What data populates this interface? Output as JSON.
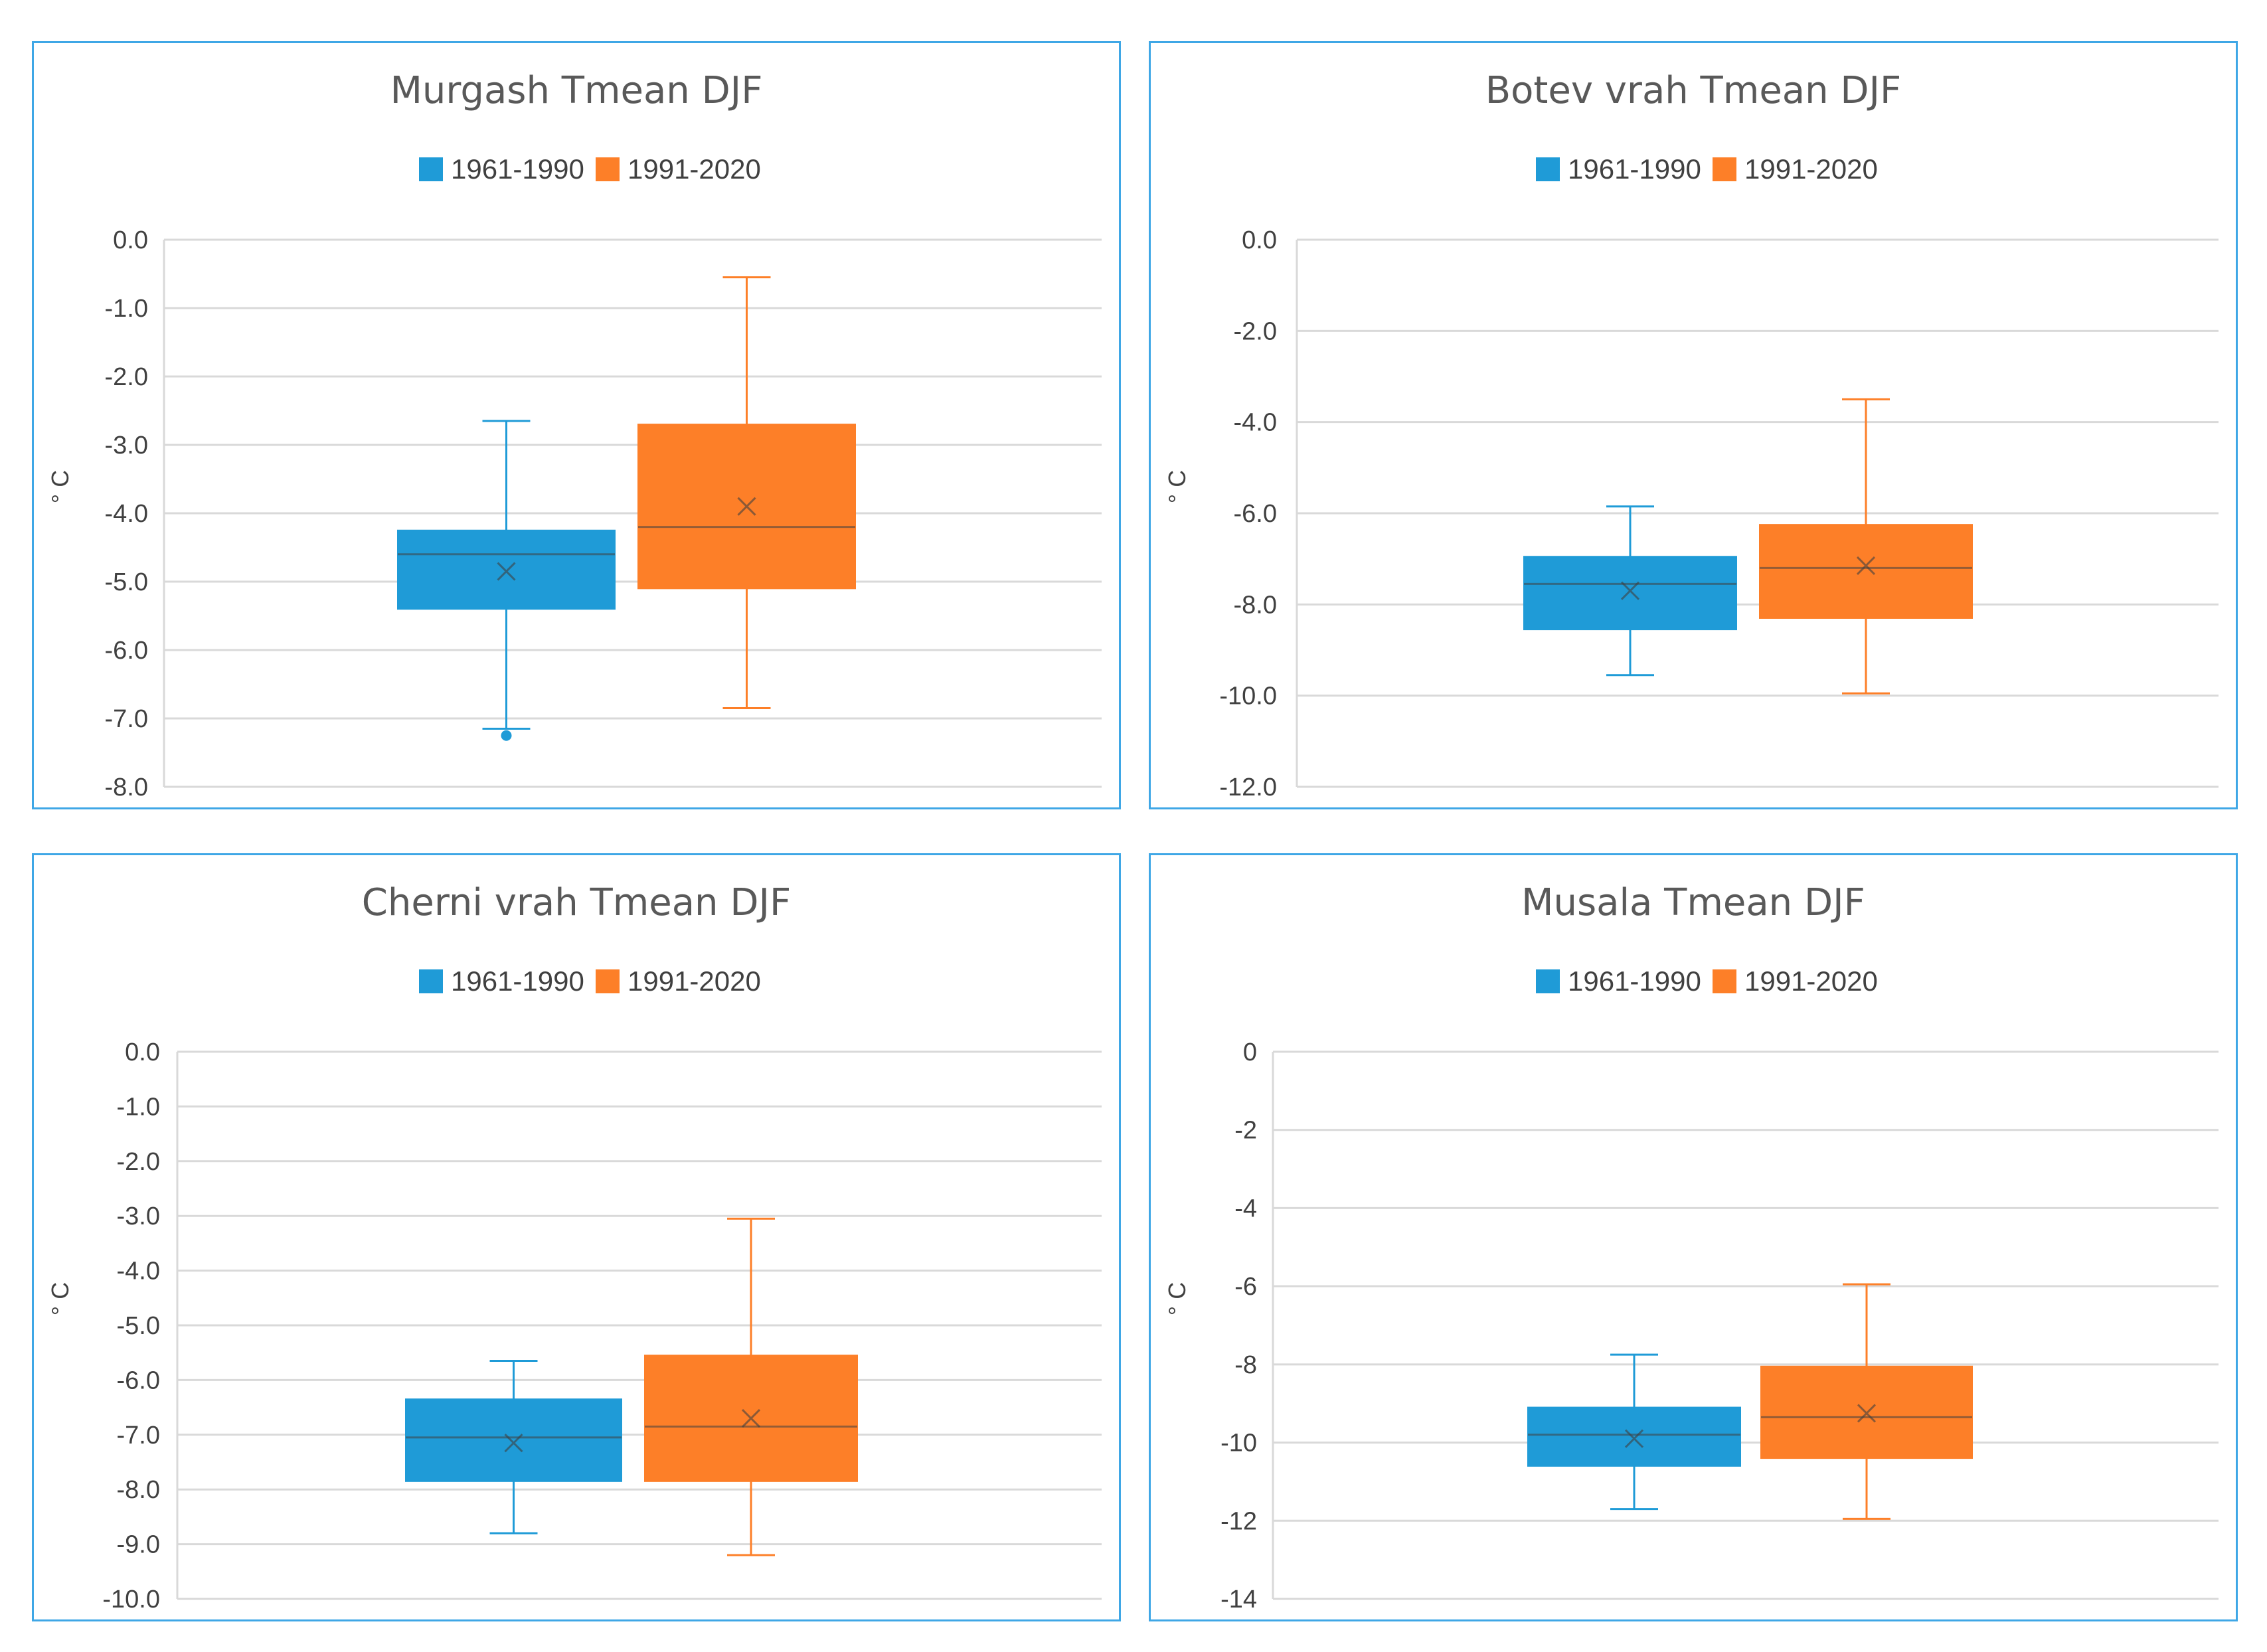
{
  "colors": {
    "series_1961_1990": "#1f9bd7",
    "series_1991_2020": "#fd7f28",
    "panel_border": "#3fa7e6",
    "gridline": "#d9d9d9",
    "text": "#404040"
  },
  "chart_data": [
    {
      "type": "box",
      "title": "Murgash Tmean DJF",
      "ylabel": "° C",
      "ylim": [
        -8.0,
        0.0
      ],
      "yticks": [
        0,
        -1,
        -2,
        -3,
        -4,
        -5,
        -6,
        -7,
        -8
      ],
      "ytick_labels": [
        "0.0",
        "-1.0",
        "-2.0",
        "-3.0",
        "-4.0",
        "-5.0",
        "-6.0",
        "-7.0",
        "-8.0"
      ],
      "legend": [
        "1961-1990",
        "1991-2020"
      ],
      "series": [
        {
          "name": "1961-1990",
          "min": -7.15,
          "q1": -5.4,
          "median": -4.6,
          "q3": -4.25,
          "max": -2.65,
          "mean": -4.85,
          "outliers": [
            -7.25
          ]
        },
        {
          "name": "1991-2020",
          "min": -6.85,
          "q1": -5.1,
          "median": -4.2,
          "q3": -2.7,
          "max": -0.55,
          "mean": -3.9,
          "outliers": []
        }
      ]
    },
    {
      "type": "box",
      "title": "Botev vrah Tmean DJF",
      "ylabel": "° C",
      "ylim": [
        -12.0,
        0.0
      ],
      "yticks": [
        0,
        -2,
        -4,
        -6,
        -8,
        -10,
        -12
      ],
      "ytick_labels": [
        "0.0",
        "-2.0",
        "-4.0",
        "-6.0",
        "-8.0",
        "-10.0",
        "-12.0"
      ],
      "legend": [
        "1961-1990",
        "1991-2020"
      ],
      "series": [
        {
          "name": "1961-1990",
          "min": -9.55,
          "q1": -8.55,
          "median": -7.55,
          "q3": -6.95,
          "max": -5.85,
          "mean": -7.7,
          "outliers": []
        },
        {
          "name": "1991-2020",
          "min": -9.95,
          "q1": -8.3,
          "median": -7.2,
          "q3": -6.25,
          "max": -3.5,
          "mean": -7.15,
          "outliers": []
        }
      ]
    },
    {
      "type": "box",
      "title": "Cherni vrah Tmean DJF",
      "ylabel": "° C",
      "ylim": [
        -10.0,
        0.0
      ],
      "yticks": [
        0,
        -1,
        -2,
        -3,
        -4,
        -5,
        -6,
        -7,
        -8,
        -9,
        -10
      ],
      "ytick_labels": [
        "0.0",
        "-1.0",
        "-2.0",
        "-3.0",
        "-4.0",
        "-5.0",
        "-6.0",
        "-7.0",
        "-8.0",
        "-9.0",
        "-10.0"
      ],
      "legend": [
        "1961-1990",
        "1991-2020"
      ],
      "series": [
        {
          "name": "1961-1990",
          "min": -8.8,
          "q1": -7.85,
          "median": -7.05,
          "q3": -6.35,
          "max": -5.65,
          "mean": -7.15,
          "outliers": []
        },
        {
          "name": "1991-2020",
          "min": -9.2,
          "q1": -7.85,
          "median": -6.85,
          "q3": -5.55,
          "max": -3.05,
          "mean": -6.7,
          "outliers": []
        }
      ]
    },
    {
      "type": "box",
      "title": "Musala Tmean DJF",
      "ylabel": "° C",
      "ylim": [
        -14,
        0
      ],
      "yticks": [
        0,
        -2,
        -4,
        -6,
        -8,
        -10,
        -12,
        -14
      ],
      "ytick_labels": [
        "0",
        "-2",
        "-4",
        "-6",
        "-8",
        "-10",
        "-12",
        "-14"
      ],
      "legend": [
        "1961-1990",
        "1991-2020"
      ],
      "series": [
        {
          "name": "1961-1990",
          "min": -11.7,
          "q1": -10.6,
          "median": -9.8,
          "q3": -9.1,
          "max": -7.75,
          "mean": -9.9,
          "outliers": []
        },
        {
          "name": "1991-2020",
          "min": -11.95,
          "q1": -10.4,
          "median": -9.35,
          "q3": -8.05,
          "max": -5.95,
          "mean": -9.25,
          "outliers": []
        }
      ]
    }
  ]
}
